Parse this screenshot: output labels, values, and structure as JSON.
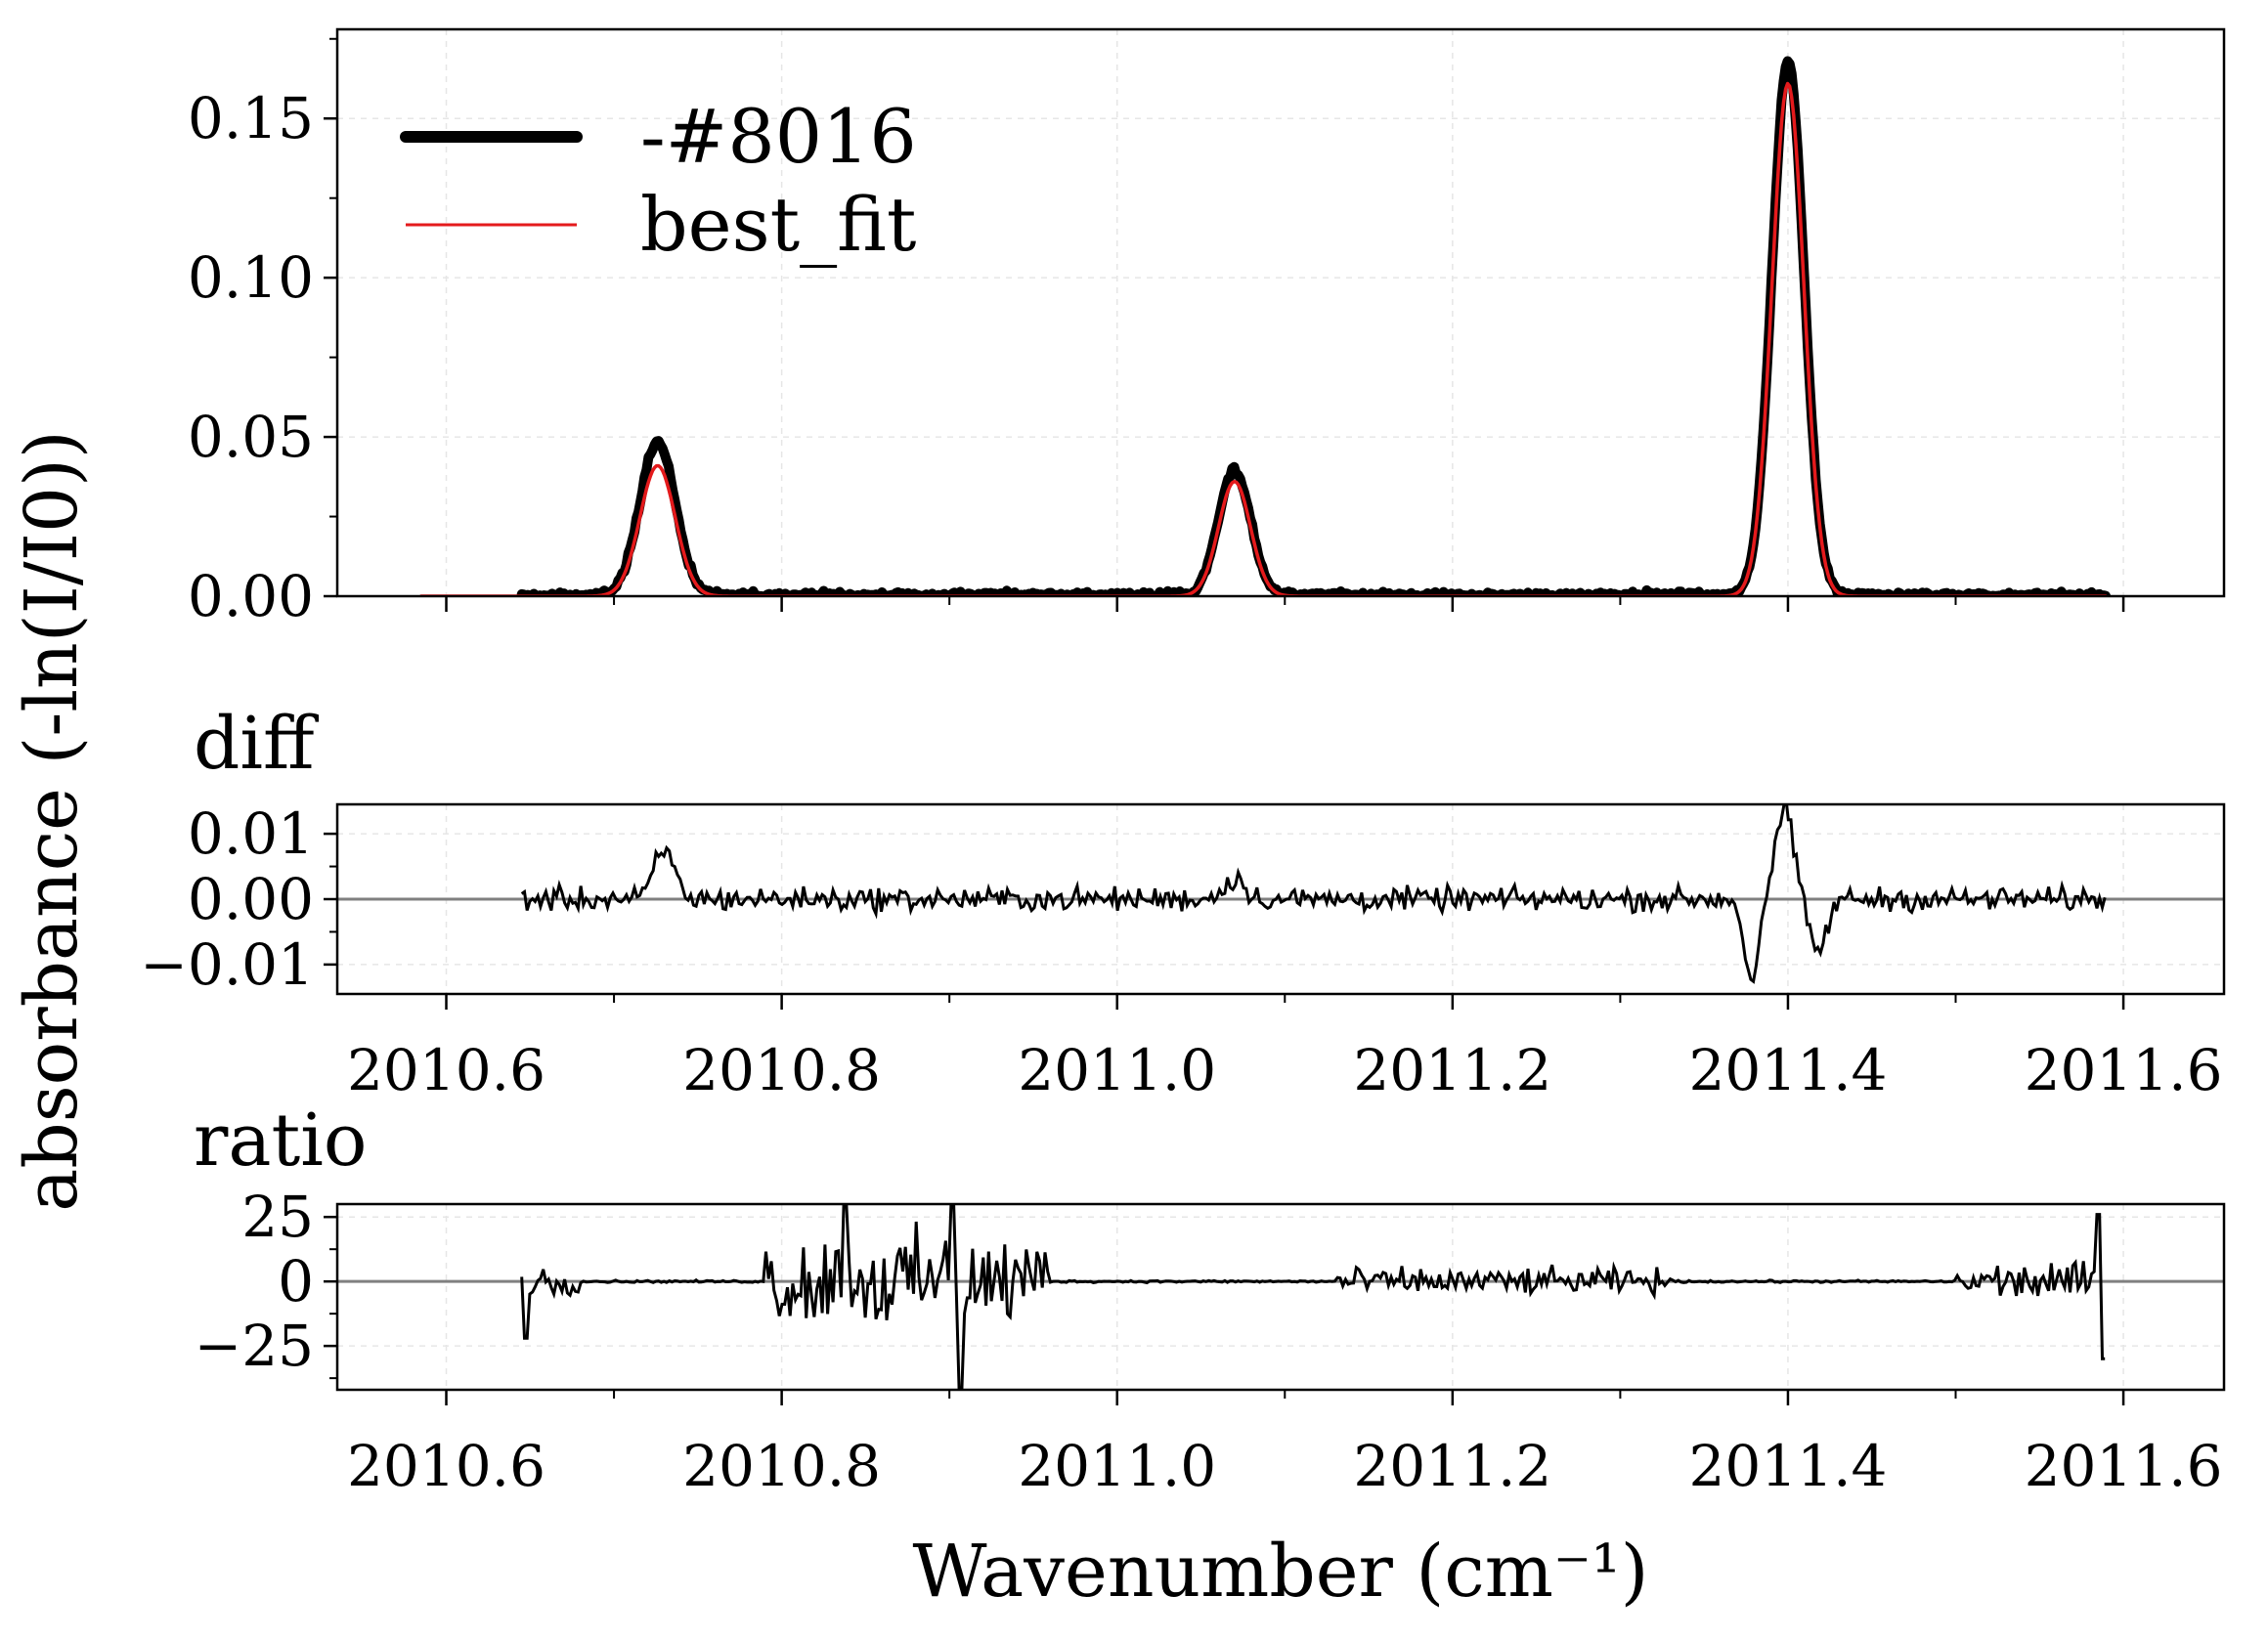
{
  "chart_data": {
    "type": "line",
    "ylabel": "absorbance (-ln(I/I0))",
    "xlabel": "Wavenumber (cm⁻¹)",
    "xlim": [
      2010.535,
      2011.66
    ],
    "x_ticks": [
      "2010.6",
      "2010.8",
      "2011.0",
      "2011.2",
      "2011.4",
      "2011.6"
    ],
    "x_tick_values": [
      2010.6,
      2010.8,
      2011.0,
      2011.2,
      2011.4,
      2011.6
    ],
    "grid": true,
    "legend_position": "top-left",
    "colors": {
      "measured": "#000000",
      "best_fit": "#e41a1c",
      "zero_line": "#808080",
      "grid": "#e6e6e6"
    },
    "panels": [
      {
        "id": "spectrum",
        "title": "",
        "ylim": [
          0,
          0.178
        ],
        "y_ticks": [
          "0.00",
          "0.05",
          "0.10",
          "0.15"
        ],
        "y_tick_values": [
          0,
          0.05,
          0.1,
          0.15
        ],
        "series": [
          {
            "name": "-#8016",
            "peaks": [
              {
                "center": 2010.726,
                "height": 0.048,
                "sigma": 0.0105
              },
              {
                "center": 2011.07,
                "height": 0.039,
                "sigma": 0.0095
              },
              {
                "center": 2011.4,
                "height": 0.168,
                "sigma": 0.0095
              }
            ],
            "x_range": [
              2010.645,
              2011.59
            ],
            "baseline_noise": 0.0018
          },
          {
            "name": "best_fit",
            "peaks": [
              {
                "center": 2010.726,
                "height": 0.041,
                "sigma": 0.0105
              },
              {
                "center": 2011.07,
                "height": 0.036,
                "sigma": 0.0095
              },
              {
                "center": 2011.4,
                "height": 0.161,
                "sigma": 0.0095
              }
            ],
            "x_range": [
              2010.585,
              2011.59
            ]
          }
        ]
      },
      {
        "id": "diff",
        "title": "diff",
        "ylim": [
          -0.0145,
          0.0145
        ],
        "y_ticks": [
          "0.01",
          "0.00",
          "−0.01"
        ],
        "y_tick_values": [
          0.01,
          0,
          -0.01
        ],
        "x_range": [
          2010.645,
          2011.59
        ],
        "features": [
          {
            "x": 2010.73,
            "y": 0.0075,
            "w": 0.006
          },
          {
            "x": 2011.07,
            "y": 0.0032,
            "w": 0.006
          },
          {
            "x": 2011.378,
            "y": -0.0125,
            "w": 0.004
          },
          {
            "x": 2011.398,
            "y": 0.014,
            "w": 0.005
          },
          {
            "x": 2011.418,
            "y": -0.008,
            "w": 0.005
          }
        ],
        "noise": 0.0015
      },
      {
        "id": "ratio",
        "title": "ratio",
        "ylim": [
          -42,
          30
        ],
        "y_ticks": [
          "25",
          "0",
          "−25"
        ],
        "y_tick_values": [
          25,
          0,
          -25
        ],
        "x_range": [
          2010.645,
          2011.59
        ],
        "noisy_regions": [
          {
            "from": 2010.645,
            "to": 2010.68,
            "amp": 8
          },
          {
            "from": 2010.79,
            "to": 2010.96,
            "amp": 26
          },
          {
            "from": 2011.13,
            "to": 2011.33,
            "amp": 7
          },
          {
            "from": 2011.5,
            "to": 2011.59,
            "amp": 10
          }
        ],
        "spikes": [
          {
            "x": 2010.838,
            "y": 30
          },
          {
            "x": 2010.902,
            "y": 30
          },
          {
            "x": 2010.906,
            "y": -42
          },
          {
            "x": 2011.585,
            "y": 26
          },
          {
            "x": 2011.588,
            "y": -30
          },
          {
            "x": 2010.648,
            "y": -22
          }
        ]
      }
    ]
  }
}
